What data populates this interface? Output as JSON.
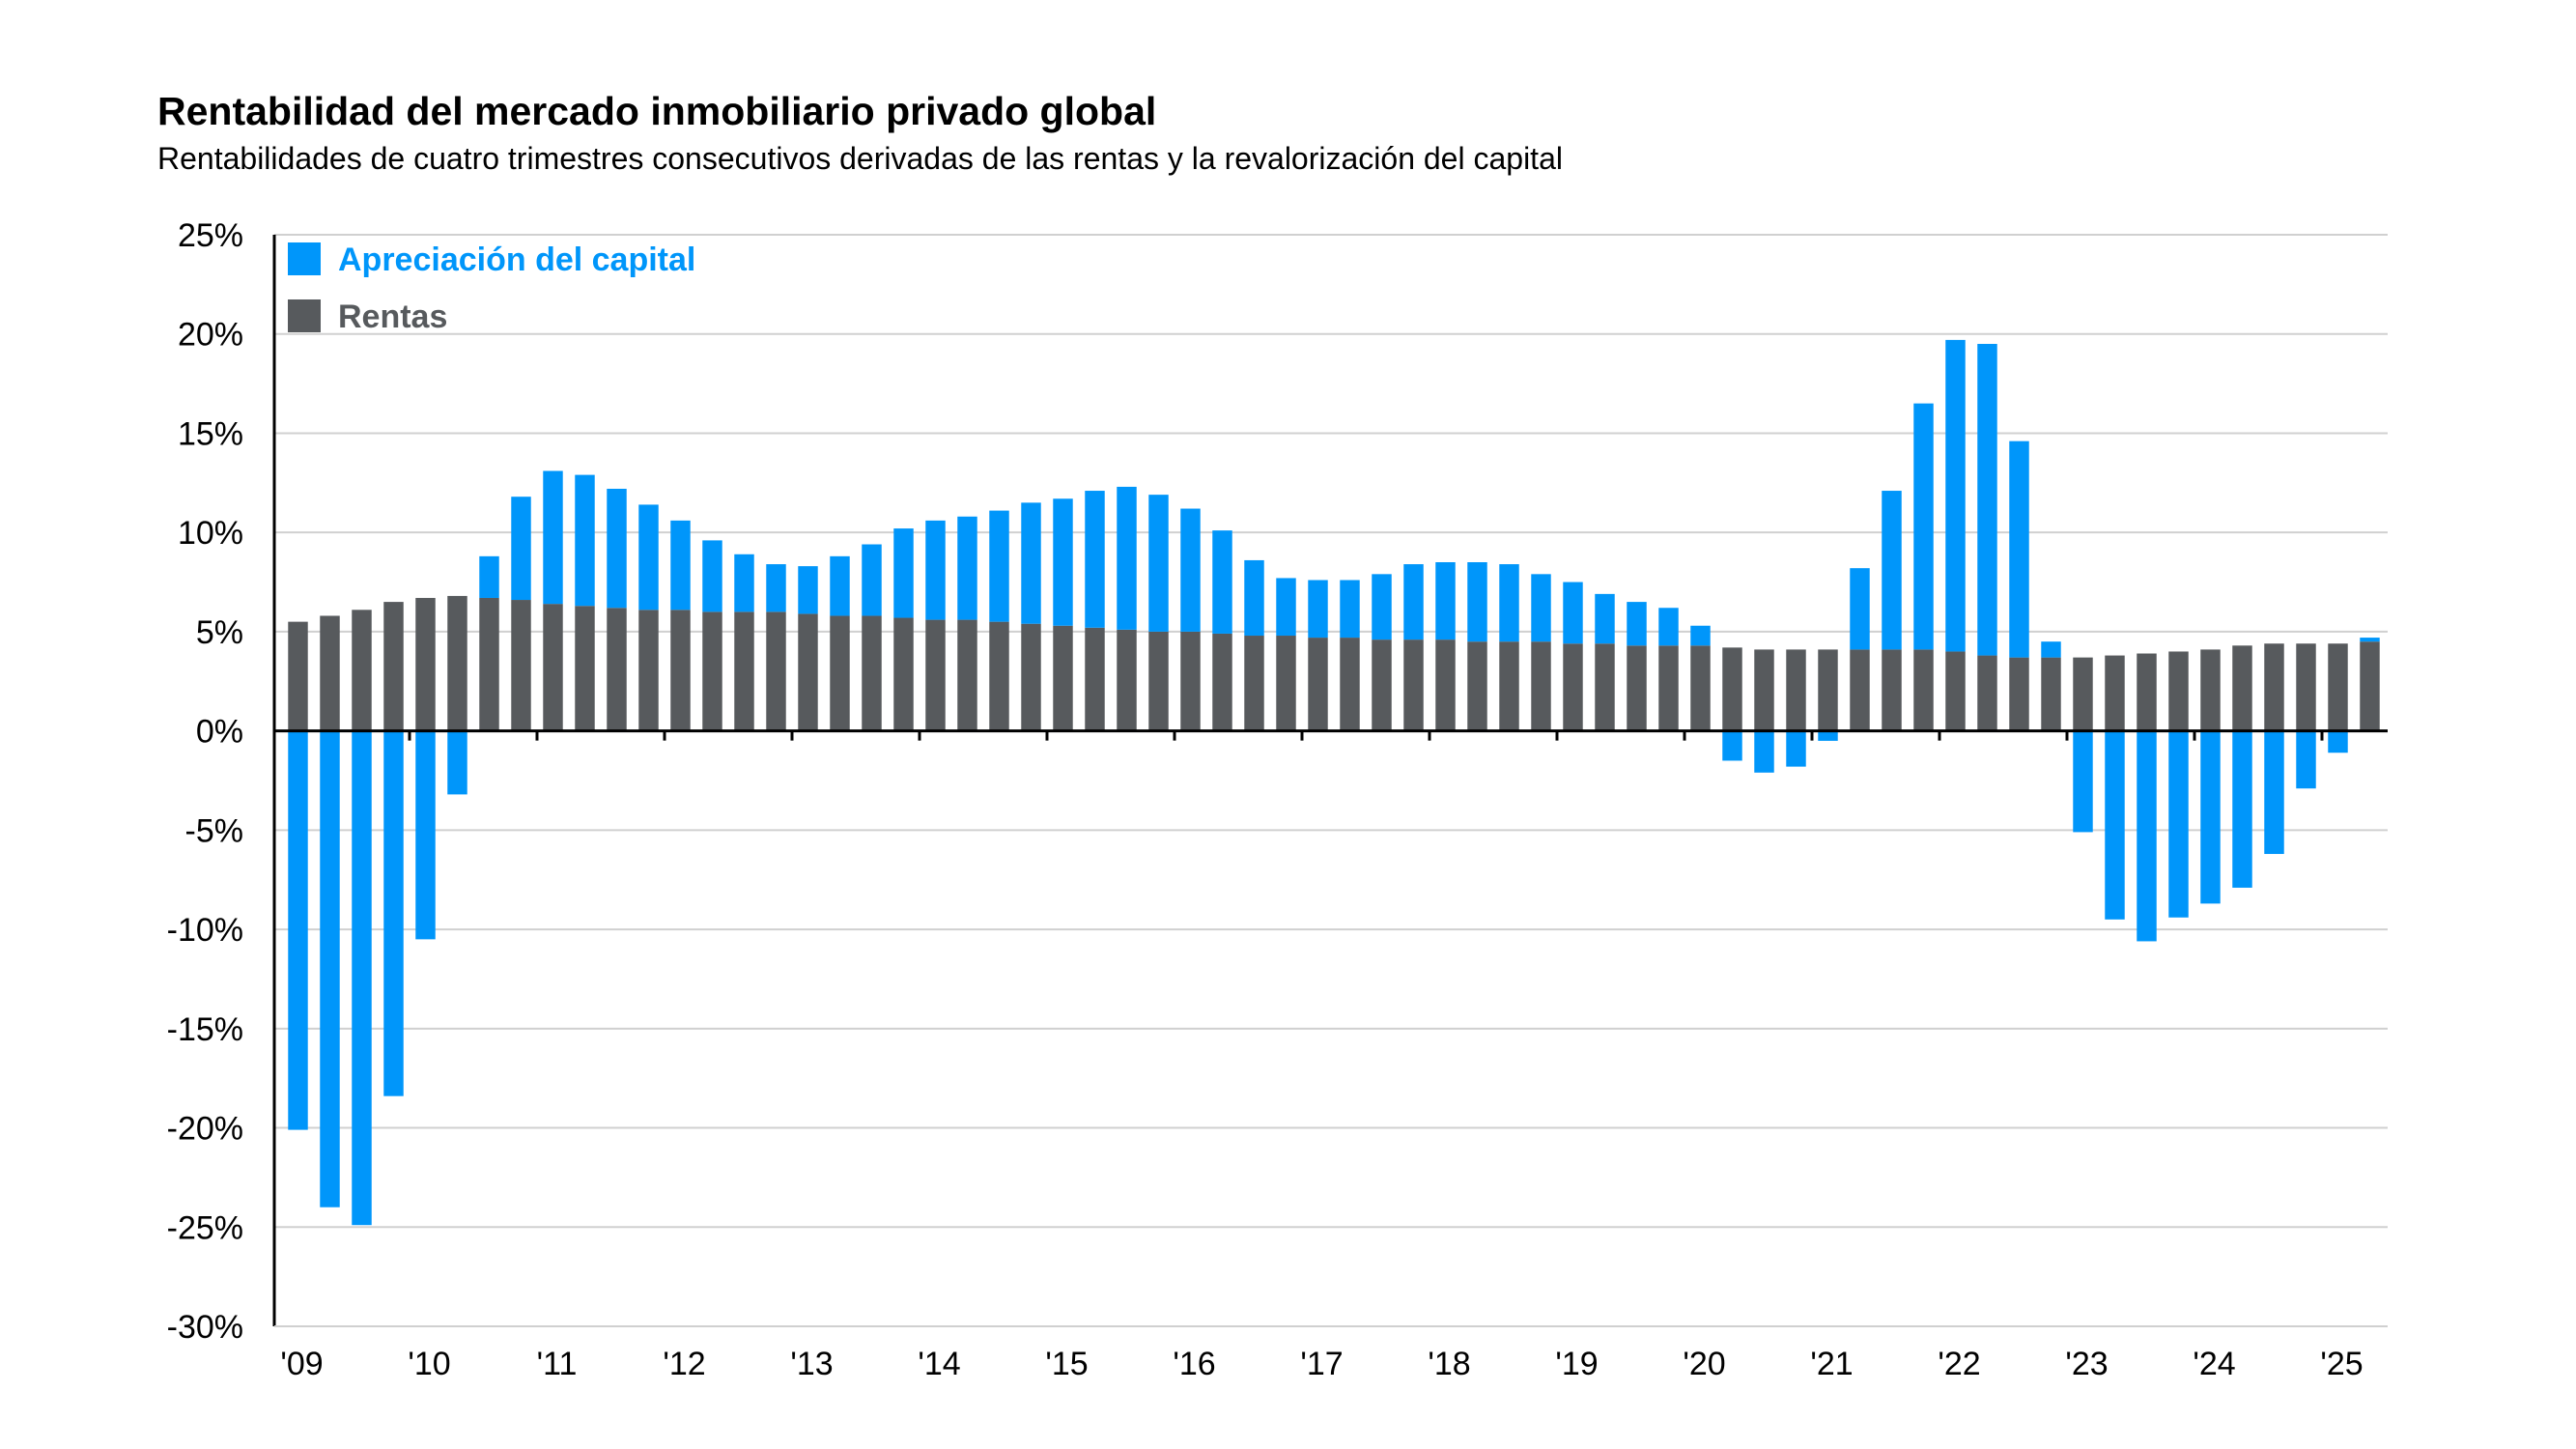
{
  "title": "Rentabilidad del mercado inmobiliario privado global",
  "subtitle": "Rentabilidades de cuatro trimestres consecutivos derivadas de las rentas y la revalorización del capital",
  "chart_data": {
    "type": "bar",
    "stacked": true,
    "title": "Rentabilidad del mercado inmobiliario privado global",
    "subtitle": "Rentabilidades de cuatro trimestres consecutivos derivadas de las rentas y la revalorización del capital",
    "xlabel": "",
    "ylabel": "",
    "ylim": [
      -30,
      25
    ],
    "yticks": [
      25,
      20,
      15,
      10,
      5,
      0,
      -5,
      -10,
      -15,
      -20,
      -25,
      -30
    ],
    "ytick_labels": [
      "25%",
      "20%",
      "15%",
      "10%",
      "5%",
      "0%",
      "-5%",
      "-10%",
      "-15%",
      "-20%",
      "-25%",
      "-30%"
    ],
    "xtick_labels": [
      "'09",
      "'10",
      "'11",
      "'12",
      "'13",
      "'14",
      "'15",
      "'16",
      "'17",
      "'18",
      "'19",
      "'20",
      "'21",
      "'22",
      "'23",
      "'24",
      "'25"
    ],
    "grid": true,
    "legend_position": "top-left",
    "colors": {
      "Apreciación del capital": "#0096FA",
      "Rentas": "#575A5D"
    },
    "series": [
      {
        "name": "Apreciación del capital",
        "values": [
          -20.1,
          -24.0,
          -24.9,
          -18.4,
          -10.5,
          -3.2,
          2.1,
          5.2,
          6.7,
          6.6,
          6.0,
          5.3,
          4.5,
          3.6,
          2.9,
          2.4,
          2.4,
          3.0,
          3.6,
          4.5,
          5.0,
          5.2,
          5.6,
          6.1,
          6.4,
          6.9,
          7.2,
          6.9,
          6.2,
          5.2,
          3.8,
          2.9,
          2.9,
          2.9,
          3.3,
          3.8,
          3.9,
          4.0,
          3.9,
          3.4,
          3.1,
          2.5,
          2.2,
          1.9,
          1.0,
          -1.5,
          -2.1,
          -1.8,
          -0.5,
          4.1,
          8.0,
          12.4,
          15.7,
          15.7,
          10.9,
          0.8,
          -5.1,
          -9.5,
          -10.6,
          -9.4,
          -8.7,
          -7.9,
          -6.2,
          -2.9,
          -1.1,
          0.2
        ]
      },
      {
        "name": "Rentas",
        "values": [
          5.5,
          5.8,
          6.1,
          6.5,
          6.7,
          6.8,
          6.7,
          6.6,
          6.4,
          6.3,
          6.2,
          6.1,
          6.1,
          6.0,
          6.0,
          6.0,
          5.9,
          5.8,
          5.8,
          5.7,
          5.6,
          5.6,
          5.5,
          5.4,
          5.3,
          5.2,
          5.1,
          5.0,
          5.0,
          4.9,
          4.8,
          4.8,
          4.7,
          4.7,
          4.6,
          4.6,
          4.6,
          4.5,
          4.5,
          4.5,
          4.4,
          4.4,
          4.3,
          4.3,
          4.3,
          4.2,
          4.1,
          4.1,
          4.1,
          4.1,
          4.1,
          4.1,
          4.0,
          3.8,
          3.7,
          3.7,
          3.7,
          3.8,
          3.9,
          4.0,
          4.1,
          4.3,
          4.4,
          4.4,
          4.4,
          4.5
        ]
      }
    ]
  }
}
